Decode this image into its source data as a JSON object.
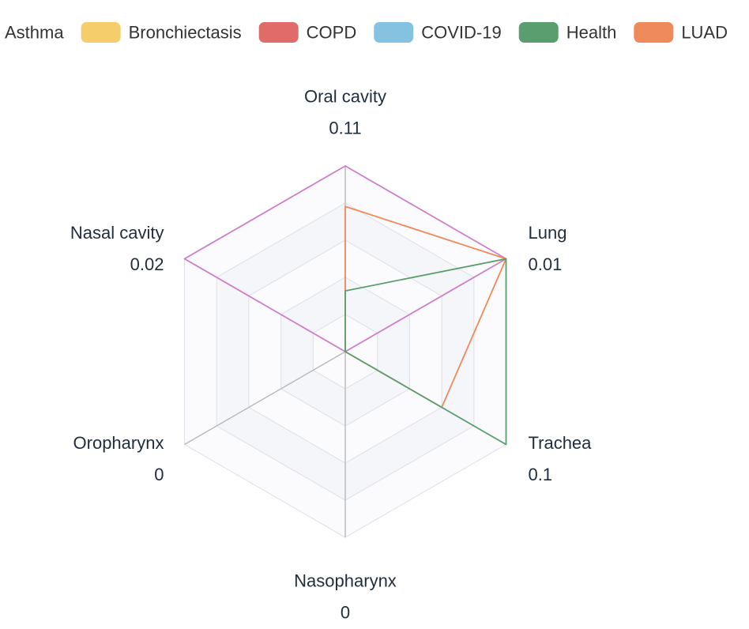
{
  "chart_data": {
    "type": "radar",
    "legend": [
      {
        "name": "Asthma",
        "color": "#5470c6"
      },
      {
        "name": "Bronchiectasis",
        "color": "#f5ce6b"
      },
      {
        "name": "COPD",
        "color": "#e06c6a"
      },
      {
        "name": "COVID-19",
        "color": "#85c1e0"
      },
      {
        "name": "Health",
        "color": "#5a9e6f"
      },
      {
        "name": "LUAD",
        "color": "#ef8a5a"
      }
    ],
    "indicators": [
      {
        "name": "Oral cavity",
        "max": 0.11,
        "max_label": "0.11"
      },
      {
        "name": "Lung",
        "max": 0.01,
        "max_label": "0.01"
      },
      {
        "name": "Trachea",
        "max": 0.1,
        "max_label": "0.1"
      },
      {
        "name": "Nasopharynx",
        "max": 0,
        "max_label": "0"
      },
      {
        "name": "Oropharynx",
        "max": 0,
        "max_label": "0"
      },
      {
        "name": "Nasal cavity",
        "max": 0.02,
        "max_label": "0.02"
      }
    ],
    "series": [
      {
        "color": "#cf7fca",
        "values": [
          0.11,
          0.01,
          0,
          0,
          0,
          0.02
        ]
      },
      {
        "name": "LUAD",
        "color": "#ef8a5a",
        "values": [
          0.086,
          0.01,
          0.06,
          0,
          0,
          0
        ]
      },
      {
        "name": "Health",
        "color": "#5a9e6f",
        "values": [
          0.036,
          0.01,
          0.1,
          0,
          0,
          0
        ]
      }
    ],
    "split_number": 5,
    "grid": true
  }
}
